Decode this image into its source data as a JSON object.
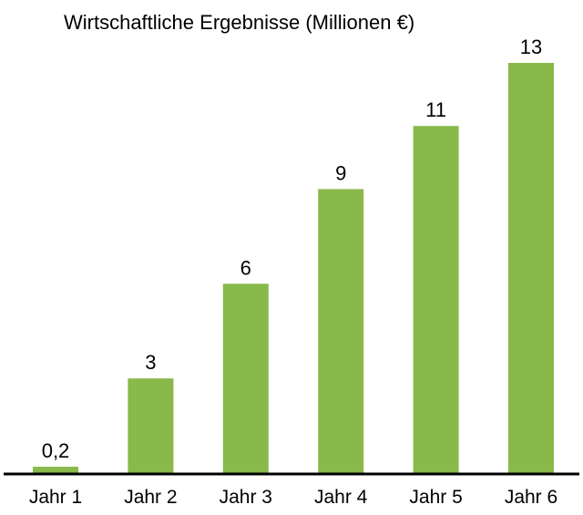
{
  "chart_data": {
    "type": "bar",
    "title": "Wirtschaftliche Ergebnisse (Millionen €)",
    "categories": [
      "Jahr 1",
      "Jahr 2",
      "Jahr 3",
      "Jahr 4",
      "Jahr 5",
      "Jahr 6"
    ],
    "values": [
      0.2,
      3,
      6,
      9,
      11,
      13
    ],
    "data_labels": [
      "0,2",
      "3",
      "6",
      "9",
      "11",
      "13"
    ],
    "xlabel": "",
    "ylabel": "",
    "ylim": [
      0,
      13
    ],
    "grid": false,
    "legend": "none",
    "bar_color": "#88b94a",
    "axis_color": "#000000"
  }
}
